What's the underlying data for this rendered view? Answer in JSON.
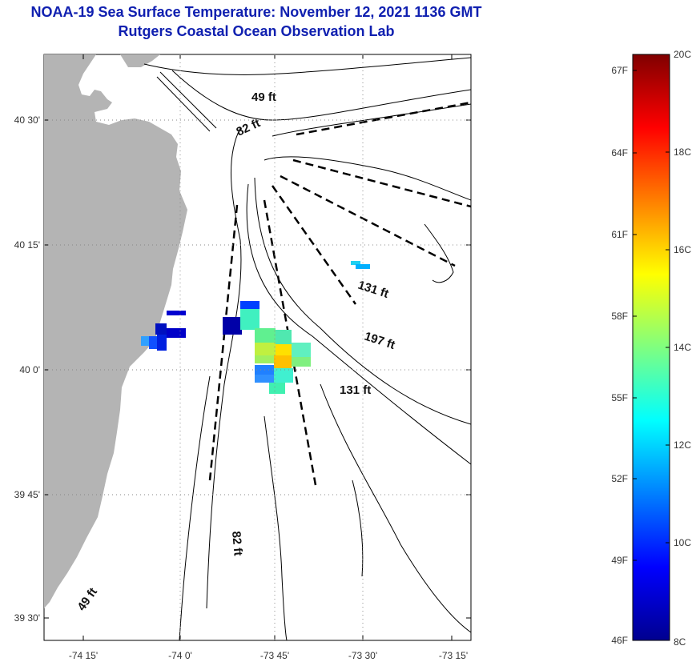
{
  "title": {
    "line1": "NOAA-19 Sea Surface Temperature:  November 12, 2021 1136 GMT",
    "line2": "Rutgers Coastal Ocean Observation Lab"
  },
  "map": {
    "lon_ticks": [
      "-74 15'",
      "-74 0'",
      "-73 45'",
      "-73 30'",
      "-73 15'"
    ],
    "lat_ticks": [
      "40 30'",
      "40 15'",
      "40 0'",
      "39 45'",
      "39 30'"
    ],
    "contour_labels": [
      "49 ft",
      "82 ft",
      "131 ft",
      "197 ft",
      "131 ft",
      "82 ft",
      "49 ft"
    ],
    "colors": {
      "land": "#b4b4b4",
      "water": "#ffffff",
      "title": "#1020b0",
      "dashed_lines": "#000000"
    }
  },
  "colorbar": {
    "fahrenheit_labels": [
      "67F",
      "64F",
      "61F",
      "58F",
      "55F",
      "52F",
      "49F",
      "46F"
    ],
    "celsius_labels": [
      "20C",
      "18C",
      "16C",
      "14C",
      "12C",
      "10C",
      "8C"
    ],
    "range_c": [
      8,
      20
    ],
    "colormap": "jet"
  }
}
